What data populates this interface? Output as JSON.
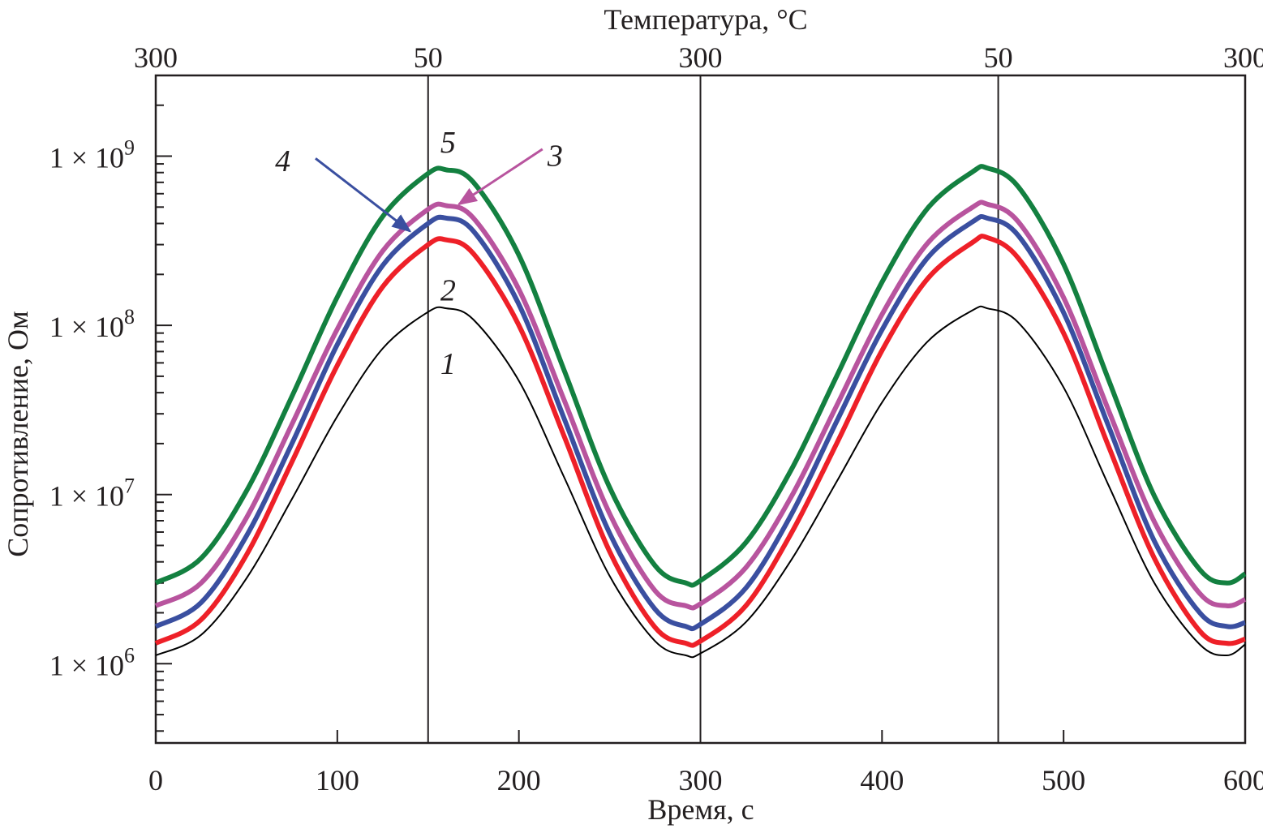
{
  "chart_data": {
    "type": "line",
    "xlabel": "Время, с",
    "ylabel": "Сопротивление, Ом",
    "top_axis_label": "Температура, °C",
    "xlim": [
      0,
      600
    ],
    "ylim": [
      340000,
      3000000000
    ],
    "y_scale": "log",
    "grid": false,
    "x_ticks": [
      0,
      100,
      200,
      300,
      400,
      500,
      600
    ],
    "x_tick_labels": [
      "0",
      "100",
      "200",
      "300",
      "400",
      "500",
      "600"
    ],
    "y_ticks": [
      1000000,
      10000000,
      100000000,
      1000000000
    ],
    "y_tick_labels": [
      {
        "mantissa": "1 × 10",
        "exp": "6"
      },
      {
        "mantissa": "1 × 10",
        "exp": "7"
      },
      {
        "mantissa": "1 × 10",
        "exp": "8"
      },
      {
        "mantissa": "1 × 10",
        "exp": "9"
      }
    ],
    "top_ticks": [
      0,
      150,
      300,
      464,
      600
    ],
    "top_tick_labels": [
      "300",
      "50",
      "300",
      "50",
      "300"
    ],
    "vertical_lines": [
      150,
      300,
      464
    ],
    "x": [
      0,
      25,
      50,
      75,
      100,
      125,
      150,
      160,
      175,
      200,
      225,
      250,
      275,
      292,
      300,
      325,
      350,
      375,
      400,
      425,
      450,
      458,
      475,
      500,
      525,
      550,
      575,
      590,
      600
    ],
    "series": [
      {
        "label": "1",
        "color": "#000000",
        "values": [
          1120000.0,
          1480000.0,
          3200000.0,
          9400000.0,
          29000000.0,
          73000000.0,
          120000000.0,
          126000000.0,
          108000000.0,
          47000000.0,
          12600000.0,
          3300000.0,
          1360000.0,
          1120000.0,
          1150000.0,
          1760000.0,
          4100000.0,
          11900000.0,
          35000000.0,
          80000000.0,
          123000000.0,
          126000000.0,
          104000000.0,
          43000000.0,
          11200000.0,
          3000000.0,
          1300000.0,
          1120000.0,
          1300000.0
        ]
      },
      {
        "label": "2",
        "color": "#ee2028",
        "values": [
          1320000.0,
          1820000.0,
          4400000.0,
          15600000.0,
          58000000.0,
          169000000.0,
          300000000.0,
          320000000.0,
          265000000.0,
          100000000.0,
          22000000.0,
          4600000.0,
          1640000.0,
          1320000.0,
          1360000.0,
          2200000.0,
          5900000.0,
          20000000.0,
          71000000.0,
          188000000.0,
          310000000.0,
          330000000.0,
          250000000.0,
          90000000.0,
          19000000.0,
          4200000.0,
          1560000.0,
          1320000.0,
          1400000.0
        ]
      },
      {
        "label": "4",
        "color": "#3a4fa0",
        "values": [
          1660000.0,
          2300000.0,
          5700000.0,
          20000000.0,
          77000000.0,
          226000000.0,
          400000000.0,
          430000000.0,
          360000000.0,
          133000000.0,
          28000000.0,
          5900000.0,
          2100000.0,
          1660000.0,
          1710000.0,
          2800000.0,
          7600000.0,
          27000000.0,
          94000000.0,
          250000000.0,
          410000000.0,
          430000000.0,
          340000000.0,
          119000000.0,
          25000000.0,
          5300000.0,
          2000000.0,
          1660000.0,
          1750000.0
        ]
      },
      {
        "label": "3",
        "color": "#b8549e",
        "values": [
          2200000.0,
          3000000.0,
          7300000.0,
          26000000.0,
          95000000.0,
          275000000.0,
          485000000.0,
          510000000.0,
          430000000.0,
          163000000.0,
          36000000.0,
          7700000.0,
          2700000.0,
          2200000.0,
          2260000.0,
          3700000.0,
          9700000.0,
          33500000.0,
          116000000.0,
          305000000.0,
          500000000.0,
          520000000.0,
          410000000.0,
          146000000.0,
          31000000.0,
          6900000.0,
          2600000.0,
          2200000.0,
          2400000.0
        ]
      },
      {
        "label": "5",
        "color": "#138040",
        "values": [
          3000000.0,
          4200000.0,
          10500000.0,
          38000000.0,
          147000000.0,
          440000000.0,
          790000000.0,
          830000000.0,
          700000000.0,
          260000000.0,
          54000000.0,
          11000000.0,
          3800000.0,
          3000000.0,
          3100000.0,
          5200000.0,
          14000000.0,
          50000000.0,
          180000000.0,
          490000000.0,
          810000000.0,
          850000000.0,
          660000000.0,
          230000000.0,
          47000000.0,
          9800000.0,
          3600000.0,
          3000000.0,
          3400000.0
        ]
      }
    ],
    "annotations": [
      {
        "text": "5",
        "x": 161,
        "y": 1200000000.0
      },
      {
        "text": "4",
        "x": 70,
        "y": 930000000.0
      },
      {
        "text": "3",
        "x": 220,
        "y": 1000000000.0
      },
      {
        "text": "2",
        "x": 161,
        "y": 160000000.0
      },
      {
        "text": "1",
        "x": 161,
        "y": 59000000.0
      }
    ],
    "arrows": [
      {
        "for": "4",
        "color": "#3a4fa0",
        "from": [
          88,
          970000000.0
        ],
        "to": [
          140,
          360000000.0
        ]
      },
      {
        "for": "3",
        "color": "#b8549e",
        "from": [
          213,
          1100000000.0
        ],
        "to": [
          167,
          520000000.0
        ]
      }
    ]
  }
}
